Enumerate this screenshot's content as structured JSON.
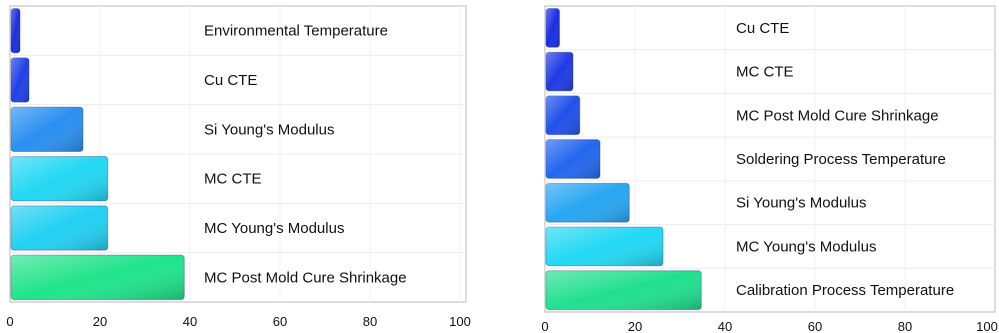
{
  "chart_data": [
    {
      "type": "bar",
      "orientation": "horizontal",
      "categories": [
        "Environmental Temperature",
        "Cu CTE",
        "Si Young's Modulus",
        "MC CTE",
        "MC Young's Modulus",
        "MC Post Mold Cure Shrinkage"
      ],
      "values": [
        2,
        4,
        16,
        21.5,
        21.5,
        38.5
      ],
      "xlim": [
        0,
        100
      ],
      "xticks": [
        0,
        20,
        40,
        60,
        80,
        100
      ],
      "xtick_labels": [
        "0",
        "20",
        "40",
        "60",
        "80",
        "100"
      ],
      "title": "",
      "xlabel": "",
      "ylabel": "",
      "grid": true,
      "bar_colors": [
        "#1a2ee0",
        "#2040e6",
        "#2a8ff0",
        "#22d8f4",
        "#22d0f2",
        "#20e48a"
      ]
    },
    {
      "type": "bar",
      "orientation": "horizontal",
      "categories": [
        "Cu CTE",
        "MC CTE",
        "MC Post Mold Cure Shrinkage",
        "Soldering Process Temperature",
        "Si Young's Modulus",
        "MC Young's Modulus",
        "Calibration Process Temperature"
      ],
      "values": [
        3,
        6,
        7.5,
        12,
        18.5,
        26,
        34.5
      ],
      "xlim": [
        0,
        100
      ],
      "xticks": [
        0,
        20,
        40,
        60,
        80,
        100
      ],
      "xtick_labels": [
        "0",
        "20",
        "40",
        "60",
        "80",
        "100"
      ],
      "title": "",
      "xlabel": "",
      "ylabel": "",
      "grid": true,
      "bar_colors": [
        "#1a2ee0",
        "#1f3ae4",
        "#2050ea",
        "#2366ee",
        "#28a6f2",
        "#22d8f4",
        "#20e08e"
      ]
    }
  ]
}
